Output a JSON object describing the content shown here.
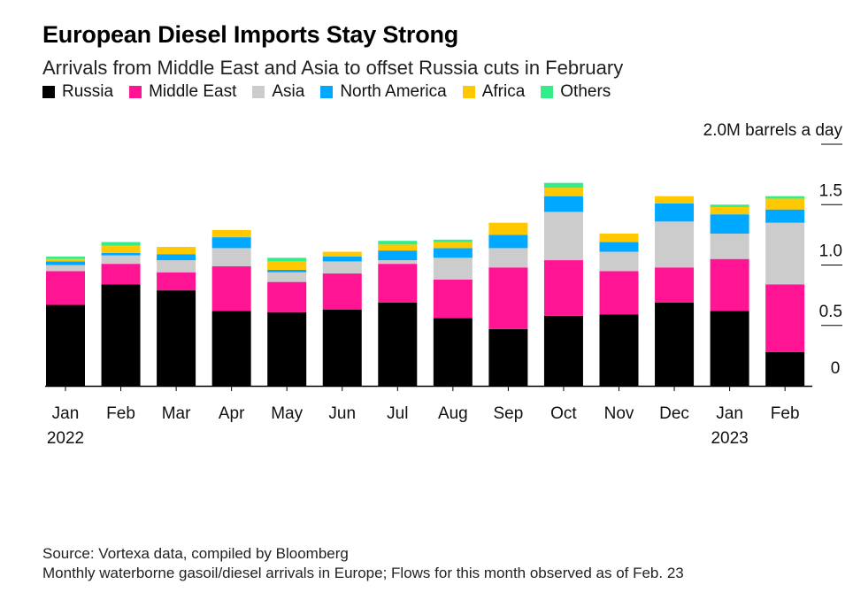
{
  "title": "European Diesel Imports Stay Strong",
  "subtitle": "Arrivals from Middle East and Asia to offset Russia cuts in February",
  "footer": {
    "source": "Source: Vortexa data, compiled by Bloomberg",
    "note": "Monthly waterborne gasoil/diesel arrivals in Europe; Flows for this month observed as of Feb. 23"
  },
  "chart_data": {
    "type": "bar",
    "stacked": true,
    "categories": [
      "Jan",
      "Feb",
      "Mar",
      "Apr",
      "May",
      "Jun",
      "Jul",
      "Aug",
      "Sep",
      "Oct",
      "Nov",
      "Dec",
      "Jan",
      "Feb"
    ],
    "year_labels": [
      {
        "index": 0,
        "label": "2022"
      },
      {
        "index": 12,
        "label": "2023"
      }
    ],
    "unit_label": "2.0M barrels a day",
    "y_ticks": [
      {
        "value": 0,
        "label": "0"
      },
      {
        "value": 0.5,
        "label": "0.5"
      },
      {
        "value": 1.0,
        "label": "1.0"
      },
      {
        "value": 1.5,
        "label": "1.5"
      },
      {
        "value": 2.0,
        "label": "2.0M barrels a day"
      }
    ],
    "ylim": [
      0,
      2.0
    ],
    "legend_position": "top-left",
    "series": [
      {
        "name": "Russia",
        "color": "#000000",
        "values": [
          0.67,
          0.84,
          0.79,
          0.62,
          0.61,
          0.63,
          0.69,
          0.56,
          0.47,
          0.58,
          0.59,
          0.69,
          0.62,
          0.28
        ]
      },
      {
        "name": "Middle East",
        "color": "#ff1493",
        "values": [
          0.28,
          0.17,
          0.15,
          0.37,
          0.25,
          0.3,
          0.32,
          0.32,
          0.51,
          0.46,
          0.36,
          0.29,
          0.43,
          0.56
        ]
      },
      {
        "name": "Asia",
        "color": "#cccccc",
        "values": [
          0.05,
          0.07,
          0.1,
          0.15,
          0.08,
          0.1,
          0.03,
          0.18,
          0.16,
          0.4,
          0.16,
          0.38,
          0.21,
          0.51
        ]
      },
      {
        "name": "North America",
        "color": "#00a9ff",
        "values": [
          0.03,
          0.02,
          0.05,
          0.09,
          0.02,
          0.04,
          0.08,
          0.08,
          0.11,
          0.13,
          0.08,
          0.15,
          0.16,
          0.11
        ]
      },
      {
        "name": "Africa",
        "color": "#ffc800",
        "values": [
          0.02,
          0.06,
          0.06,
          0.06,
          0.07,
          0.04,
          0.05,
          0.05,
          0.1,
          0.07,
          0.07,
          0.06,
          0.06,
          0.09
        ]
      },
      {
        "name": "Others",
        "color": "#33ee88",
        "values": [
          0.02,
          0.03,
          0.0,
          0.0,
          0.03,
          0.0,
          0.03,
          0.02,
          0.0,
          0.04,
          0.0,
          0.0,
          0.02,
          0.02
        ]
      }
    ]
  }
}
